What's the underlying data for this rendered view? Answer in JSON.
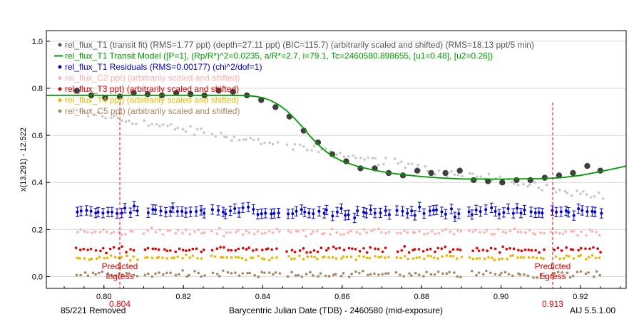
{
  "footer": {
    "removed": "85/221 Removed",
    "version": "AIJ 5.5.1.00"
  },
  "chart_data": {
    "type": "scatter",
    "xlabel": "Barycentric Julian Date (TDB) - 2460580 (mid-exposure)",
    "ylabel": "x(13.291) - 12.522",
    "xlim": [
      0.7855,
      0.9315
    ],
    "ylim": [
      -0.05,
      1.045
    ],
    "xticks": [
      {
        "v": 0.8,
        "label": "0.80"
      },
      {
        "v": 0.82,
        "label": "0.82"
      },
      {
        "v": 0.84,
        "label": "0.84"
      },
      {
        "v": 0.86,
        "label": "0.86"
      },
      {
        "v": 0.88,
        "label": "0.88"
      },
      {
        "v": 0.9,
        "label": "0.90"
      },
      {
        "v": 0.92,
        "label": "0.92"
      }
    ],
    "yticks": [
      {
        "v": 0.0,
        "label": "0.0"
      },
      {
        "v": 0.2,
        "label": "0.2"
      },
      {
        "v": 0.4,
        "label": "0.4"
      },
      {
        "v": 0.6,
        "label": "0.6"
      },
      {
        "v": 0.8,
        "label": "0.8"
      },
      {
        "v": 1.0,
        "label": "1.0"
      }
    ],
    "grid": true,
    "legend_position": "top-left",
    "legend": [
      {
        "text": "rel_flux_T1 (transit fit) (RMS=1.77 ppt) (depth=27.11 ppt) (BIC=115.7) (arbitrarily scaled and shifted) (RMS=18.13 ppt/5 min)",
        "color": "#555555",
        "marker": "dot"
      },
      {
        "text": "rel_flux_T1 Transit Model ([P=1], (Rp/R*)^2=0.0235, a/R*=2.7, i=79.1, Tc=2460580.898655, [u1=0.48], [u2=0.26])",
        "color": "#009900",
        "marker": "line"
      },
      {
        "text": "rel_flux_T1 Residuals (RMS=0.00177) (chi^2/dof=1)",
        "color": "#0000cc",
        "marker": "dot"
      },
      {
        "text": "rel_flux_C2 ppt) (arbitrarily scaled and shifted)",
        "color": "#ffb0b0",
        "marker": "dot"
      },
      {
        "text": "rel_flux_T3 ppt) (arbitrarily scaled and shifted)",
        "color": "#dd0000",
        "marker": "dot"
      },
      {
        "text": "rel_flux_T4 ppt) (arbitrarily scaled and shifted)",
        "color": "#e6b800",
        "marker": "dot"
      },
      {
        "text": "rel_flux_C5 ppt) (arbitrarily scaled and shifted)",
        "color": "#a88860",
        "marker": "dot"
      }
    ],
    "markers": [
      {
        "x": 0.804,
        "label": "Predicted Ingress",
        "value_label": "0.804",
        "color": "#dd0000"
      },
      {
        "x": 0.913,
        "label": "Predicted Egress",
        "value_label": "0.913",
        "color": "#dd0000"
      }
    ],
    "series": [
      {
        "name": "rel_flux_T1 (transit fit)",
        "kind": "binned",
        "color": "#404040",
        "x": [
          0.7932,
          0.7968,
          0.8003,
          0.804,
          0.8075,
          0.811,
          0.8146,
          0.8182,
          0.8218,
          0.8253,
          0.8289,
          0.8325,
          0.836,
          0.8396,
          0.8432,
          0.8467,
          0.8503,
          0.8539,
          0.8575,
          0.861,
          0.8646,
          0.8682,
          0.8717,
          0.8753,
          0.8789,
          0.8824,
          0.886,
          0.8896,
          0.8931,
          0.8967,
          0.9003,
          0.9039,
          0.9074,
          0.911,
          0.9146,
          0.9181,
          0.9217,
          0.925
        ],
        "y": [
          0.79,
          0.77,
          0.76,
          0.765,
          0.78,
          0.775,
          0.77,
          0.78,
          0.775,
          0.77,
          0.79,
          0.785,
          0.77,
          0.75,
          0.72,
          0.68,
          0.62,
          0.57,
          0.52,
          0.49,
          0.46,
          0.46,
          0.44,
          0.43,
          0.45,
          0.44,
          0.44,
          0.45,
          0.41,
          0.405,
          0.4,
          0.41,
          0.41,
          0.42,
          0.43,
          0.44,
          0.47,
          0.45
        ]
      },
      {
        "name": "rel_flux_T1 Transit Model",
        "kind": "line",
        "color": "#009900",
        "x": [
          0.7855,
          0.83,
          0.835,
          0.838,
          0.84,
          0.842,
          0.844,
          0.846,
          0.848,
          0.85,
          0.852,
          0.854,
          0.856,
          0.858,
          0.86,
          0.864,
          0.868,
          0.872,
          0.876,
          0.88,
          0.885,
          0.89,
          0.9,
          0.91,
          0.915,
          0.92,
          0.925,
          0.93,
          0.9315
        ],
        "y": [
          0.77,
          0.77,
          0.769,
          0.766,
          0.76,
          0.748,
          0.73,
          0.705,
          0.672,
          0.635,
          0.595,
          0.56,
          0.53,
          0.508,
          0.49,
          0.468,
          0.452,
          0.44,
          0.432,
          0.425,
          0.419,
          0.415,
          0.414,
          0.416,
          0.42,
          0.43,
          0.446,
          0.464,
          0.47
        ]
      }
    ],
    "raw_series": [
      {
        "name": "rel_flux_T1 raw",
        "color": "#c8c8c8",
        "base_x0": 0.793,
        "base_x1": 0.9255,
        "y_start": 0.7,
        "y_end": 0.34,
        "scatter": 0.02,
        "n": 140
      },
      {
        "name": "rel_flux_T1 Residuals",
        "color": "#0000cc",
        "base": 0.275,
        "scatter": 0.02,
        "err": 0.02,
        "n": 120
      },
      {
        "name": "rel_flux_C2",
        "color": "#ffb0b0",
        "base": 0.19,
        "scatter": 0.015,
        "n": 140
      },
      {
        "name": "rel_flux_T3",
        "color": "#dd0000",
        "base": 0.115,
        "scatter": 0.015,
        "n": 140
      },
      {
        "name": "rel_flux_T4",
        "color": "#e6b800",
        "base": 0.08,
        "scatter": 0.01,
        "n": 140
      },
      {
        "name": "rel_flux_C5",
        "color": "#a88860",
        "base": 0.01,
        "scatter": 0.015,
        "n": 140
      }
    ]
  }
}
